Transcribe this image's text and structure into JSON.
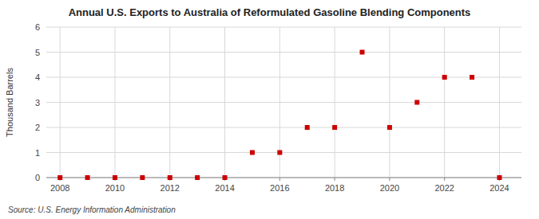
{
  "chart_data": {
    "type": "scatter",
    "title": "Annual U.S. Exports to Australia of Reformulated Gasoline Blending Components",
    "y_label": "Thousand Barrels",
    "annotation": "Source: U.S. Energy Information Administration",
    "x": [
      2008,
      2009,
      2010,
      2011,
      2012,
      2013,
      2014,
      2015,
      2016,
      2017,
      2018,
      2019,
      2020,
      2021,
      2022,
      2023,
      2024
    ],
    "values": [
      0,
      0,
      0,
      0,
      0,
      0,
      0,
      1,
      1,
      2,
      2,
      5,
      2,
      3,
      4,
      4,
      0
    ],
    "color": "#cc0000",
    "marker": "square",
    "xlim": [
      2007.5,
      2024.8
    ],
    "ylim": [
      0,
      6
    ],
    "xticks": [
      2008,
      2010,
      2012,
      2014,
      2016,
      2018,
      2020,
      2022,
      2024
    ],
    "yticks": [
      0,
      1,
      2,
      3,
      4,
      5,
      6
    ],
    "grid": true
  }
}
